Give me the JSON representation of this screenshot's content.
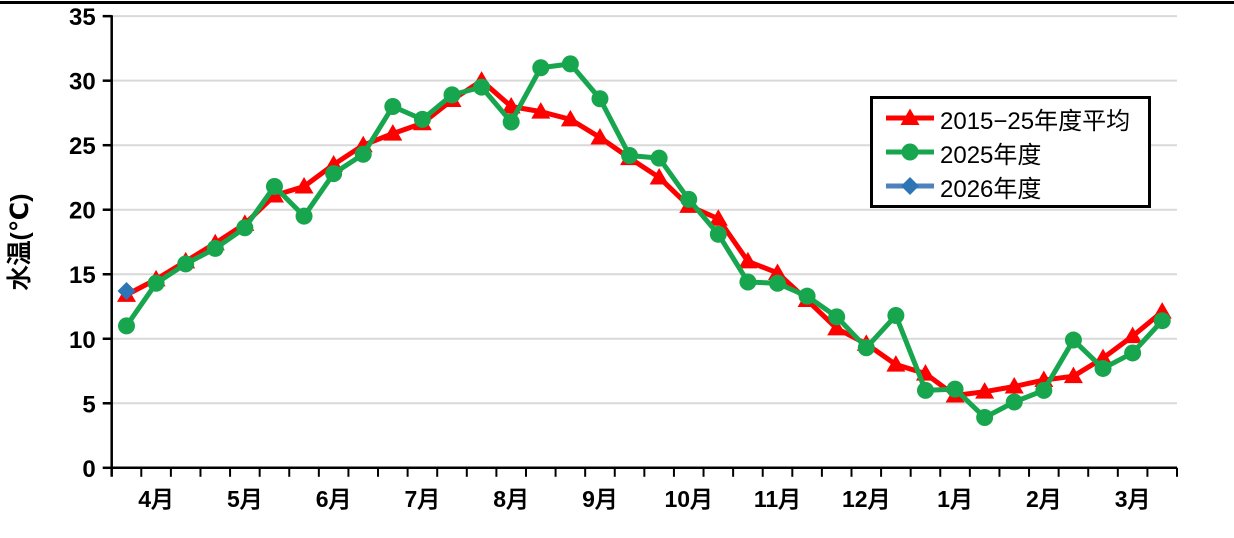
{
  "chart_data": {
    "type": "line",
    "title": "",
    "xlabel": "",
    "ylabel": "水温(℃)",
    "ylim": [
      0,
      35
    ],
    "yticks": [
      0,
      5,
      10,
      15,
      20,
      25,
      30,
      35
    ],
    "grid": true,
    "periods_per_month": 3,
    "categories": [
      "4月",
      "5月",
      "6月",
      "7月",
      "8月",
      "9月",
      "10月",
      "11月",
      "12月",
      "1月",
      "2月",
      "3月"
    ],
    "legend_position": "upper-right",
    "series": [
      {
        "name": "2015−25年度平均",
        "marker": "triangle",
        "color": "#ff0000",
        "line_color": "#ff0000",
        "values": [
          13.4,
          14.6,
          16.0,
          17.4,
          18.9,
          21.1,
          21.8,
          23.5,
          25.0,
          25.9,
          26.7,
          28.5,
          30.0,
          28.0,
          27.6,
          27.0,
          25.6,
          24.0,
          22.5,
          20.3,
          19.3,
          16.0,
          15.1,
          13.0,
          10.8,
          9.6,
          8.0,
          7.3,
          5.6,
          5.9,
          6.3,
          6.8,
          7.1,
          8.5,
          10.2,
          12.1
        ]
      },
      {
        "name": "2025年度",
        "marker": "circle",
        "color": "#17a54e",
        "line_color": "#17a54e",
        "values": [
          11.0,
          14.3,
          15.8,
          17.0,
          18.6,
          21.8,
          19.5,
          22.8,
          24.3,
          28.0,
          27.0,
          28.9,
          29.5,
          26.8,
          31.0,
          31.3,
          28.6,
          24.2,
          24.0,
          20.8,
          18.1,
          14.4,
          14.3,
          13.3,
          11.7,
          9.3,
          11.8,
          6.0,
          6.1,
          3.9,
          5.1,
          6.0,
          9.9,
          7.7,
          8.9,
          11.4
        ]
      },
      {
        "name": "2026年度",
        "marker": "diamond",
        "color": "#2e75b6",
        "line_color": "#4e81bd",
        "values": [
          13.7
        ]
      }
    ]
  },
  "colors": {
    "gridline": "#d9d9d9",
    "axis": "#000000",
    "background": "#ffffff"
  }
}
